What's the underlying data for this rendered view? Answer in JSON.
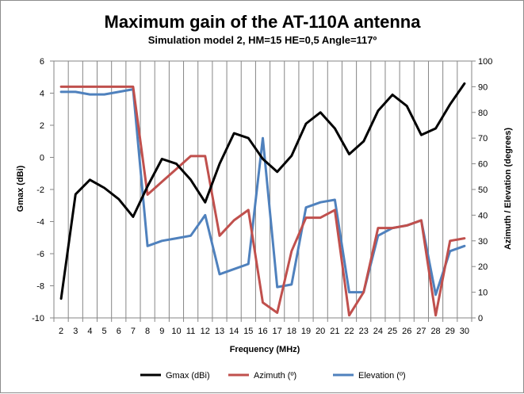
{
  "chart_data": {
    "type": "line",
    "title": "Maximum gain of the AT-110A antenna",
    "subtitle": "Simulation model 2, HM=15 HE=0,5 Angle=117º",
    "xlabel": "Frequency (MHz)",
    "ylabel_left": "Gmax (dBi)",
    "ylabel_right": "Azimuth / Elevation  (degrees)",
    "x": [
      2,
      3,
      4,
      5,
      6,
      7,
      8,
      9,
      10,
      11,
      12,
      13,
      14,
      15,
      16,
      17,
      18,
      19,
      20,
      21,
      22,
      23,
      24,
      25,
      26,
      27,
      28,
      29,
      30
    ],
    "ylim_left": [
      -10,
      6
    ],
    "ylim_right": [
      0,
      100
    ],
    "yticks_left": [
      "-10",
      "-8",
      "-6",
      "-4",
      "-2",
      "0",
      "2",
      "4",
      "6"
    ],
    "yticks_right": [
      "0",
      "10",
      "20",
      "30",
      "40",
      "50",
      "60",
      "70",
      "80",
      "90",
      "100"
    ],
    "grid": "vertical",
    "legend_position": "bottom",
    "series": [
      {
        "name": "Gmax (dBi)",
        "axis": "left",
        "color": "#000000",
        "values": [
          -8.8,
          -2.3,
          -1.4,
          -1.9,
          -2.6,
          -3.7,
          -1.8,
          -0.1,
          -0.4,
          -1.4,
          -2.8,
          -0.4,
          1.5,
          1.2,
          -0.1,
          -0.9,
          0.1,
          2.1,
          2.8,
          1.8,
          0.2,
          1.0,
          2.9,
          3.9,
          3.2,
          1.4,
          1.8,
          3.3,
          4.6
        ]
      },
      {
        "name": "Azimuth (º)",
        "axis": "right",
        "color": "#c0504d",
        "values": [
          90,
          90,
          90,
          90,
          90,
          90,
          48,
          53,
          58,
          63,
          63,
          32,
          38,
          42,
          6,
          2,
          26,
          39,
          39,
          42,
          1,
          10,
          35,
          35,
          36,
          38,
          1,
          30,
          31
        ]
      },
      {
        "name": "Elevation (º)",
        "axis": "right",
        "color": "#4f81bd",
        "values": [
          88,
          88,
          87,
          87,
          88,
          89,
          28,
          30,
          31,
          32,
          40,
          17,
          19,
          21,
          70,
          12,
          13,
          43,
          45,
          46,
          10,
          10,
          32,
          35,
          36,
          38,
          9,
          26,
          28
        ]
      }
    ]
  }
}
